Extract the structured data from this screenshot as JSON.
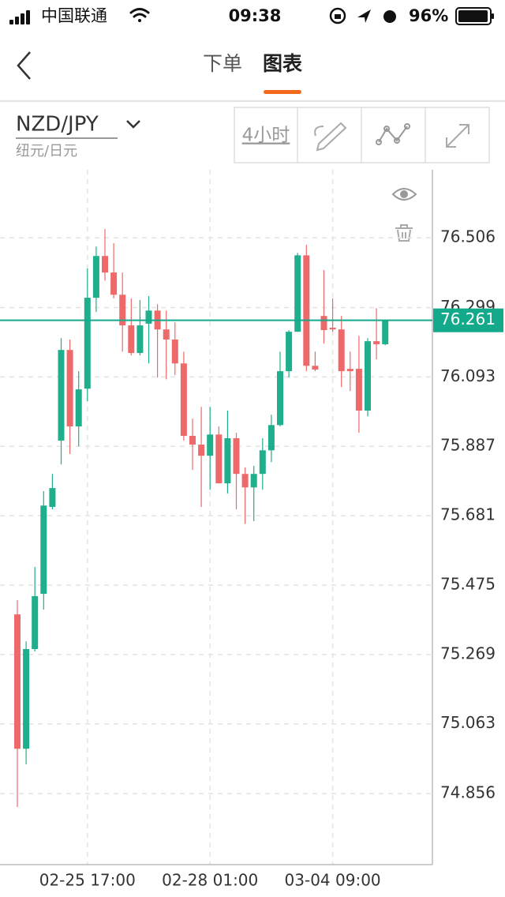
{
  "status": {
    "carrier": "中国联通",
    "time": "09:38",
    "battery": "96%"
  },
  "nav": {
    "tabs": [
      "下单",
      "图表"
    ]
  },
  "header": {
    "symbol": "NZD/JPY",
    "subtitle": "纽元/日元",
    "interval": "4小时"
  },
  "chart_data": {
    "type": "candlestick",
    "categories": [
      null,
      null,
      null,
      null,
      null,
      null,
      null,
      null,
      "02-25 17:00",
      null,
      null,
      null,
      null,
      null,
      null,
      null,
      null,
      null,
      null,
      null,
      null,
      null,
      "02-28 01:00",
      null,
      null,
      null,
      null,
      null,
      null,
      null,
      null,
      null,
      null,
      null,
      null,
      null,
      "03-04 09:00",
      null,
      null,
      null,
      null,
      null,
      null
    ],
    "open": [
      75.388,
      74.989,
      75.285,
      75.449,
      75.707,
      75.904,
      76.173,
      75.946,
      76.058,
      76.328,
      76.452,
      76.403,
      76.337,
      76.246,
      76.164,
      76.251,
      76.29,
      76.234,
      76.204,
      76.133,
      75.918,
      75.892,
      75.859,
      75.922,
      75.777,
      75.911,
      75.805,
      75.765,
      75.805,
      75.875,
      75.95,
      76.11,
      76.227,
      76.454,
      76.126,
      76.274,
      76.239,
      76.234,
      76.117,
      76.117,
      75.993,
      76.199,
      76.19
    ],
    "high": [
      75.43,
      75.308,
      75.529,
      75.754,
      75.805,
      76.208,
      76.204,
      76.11,
      76.415,
      76.48,
      76.532,
      76.49,
      76.403,
      76.326,
      76.321,
      76.333,
      76.309,
      76.29,
      76.255,
      76.168,
      75.969,
      76.004,
      76.004,
      75.946,
      75.993,
      75.927,
      75.824,
      75.829,
      75.911,
      75.981,
      76.168,
      76.232,
      76.461,
      76.485,
      76.168,
      76.41,
      76.326,
      76.274,
      76.168,
      76.215,
      76.208,
      76.297,
      76.262
    ],
    "low": [
      74.816,
      74.943,
      75.278,
      75.402,
      75.7,
      75.833,
      75.864,
      75.887,
      76.021,
      76.286,
      76.379,
      76.326,
      76.168,
      76.157,
      76.157,
      76.133,
      76.091,
      76.086,
      76.098,
      75.904,
      75.817,
      75.707,
      75.758,
      75.777,
      75.747,
      75.7,
      75.657,
      75.665,
      75.758,
      75.84,
      75.946,
      76.091,
      76.227,
      76.11,
      76.11,
      76.192,
      76.227,
      76.063,
      76.051,
      75.927,
      75.976,
      76.145,
      76.187
    ],
    "close": [
      74.989,
      75.285,
      75.442,
      75.711,
      75.763,
      76.173,
      75.946,
      76.056,
      76.328,
      76.452,
      76.403,
      76.337,
      76.246,
      76.164,
      76.246,
      76.29,
      76.234,
      76.204,
      76.133,
      75.918,
      75.892,
      75.859,
      75.922,
      75.777,
      75.911,
      75.805,
      75.765,
      75.805,
      75.875,
      75.95,
      76.11,
      76.227,
      76.454,
      76.126,
      76.115,
      76.232,
      76.234,
      76.11,
      76.11,
      75.993,
      76.199,
      76.19,
      76.261
    ],
    "up_color": "#1faf8c",
    "down_color": "#ee6a6a",
    "ylim": [
      74.645,
      76.708
    ],
    "yticks": [
      74.856,
      75.063,
      75.269,
      75.475,
      75.681,
      75.887,
      76.093,
      76.299,
      76.506
    ],
    "grid": true,
    "current_price": 76.261,
    "current_price_color": "#13a98a"
  }
}
